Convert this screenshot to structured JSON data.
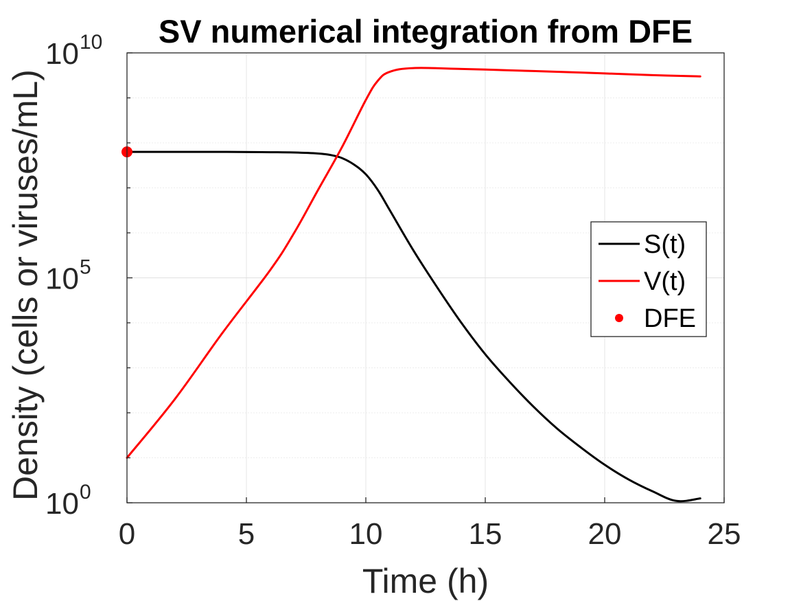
{
  "chart_data": {
    "type": "line",
    "title": "SV numerical integration from DFE",
    "xlabel": "Time (h)",
    "ylabel": "Density (cells or viruses/mL)",
    "xlim": [
      0,
      25
    ],
    "ylim": [
      1,
      10000000000
    ],
    "yscale": "log",
    "grid": true,
    "x_ticks": [
      "0",
      "5",
      "10",
      "15",
      "20",
      "25"
    ],
    "y_ticks": [
      {
        "base": "10",
        "exp": "0"
      },
      {
        "base": "10",
        "exp": "5"
      },
      {
        "base": "10",
        "exp": "10"
      }
    ],
    "legend_position": "right",
    "series": [
      {
        "name": "S(t)",
        "color": "#000000",
        "x": [
          0,
          2,
          4,
          6,
          7,
          8,
          8.5,
          9,
          9.5,
          10,
          10.5,
          11,
          12,
          13,
          14,
          15,
          16,
          17,
          18,
          19,
          20,
          21,
          22,
          23,
          24
        ],
        "y": [
          63000000,
          63000000,
          63000000,
          62000000,
          61000000,
          58000000,
          54000000,
          46000000,
          33000000,
          20000000,
          9000000,
          3200000,
          400000,
          60000,
          10000,
          2000,
          500,
          140,
          45,
          17,
          7,
          3.3,
          1.8,
          1.1,
          1.25
        ]
      },
      {
        "name": "V(t)",
        "color": "#ff0000",
        "x": [
          0,
          2,
          4,
          6,
          7,
          8,
          9,
          10,
          10.5,
          11,
          12,
          14,
          16,
          18,
          20,
          22,
          24
        ],
        "y": [
          10,
          200,
          6000,
          150000,
          1000000,
          9000000,
          80000000,
          900000000,
          2400000000,
          3800000000,
          4600000000,
          4400000000,
          4100000000,
          3800000000,
          3500000000,
          3200000000,
          3000000000
        ]
      },
      {
        "name": "DFE",
        "color": "#ff0000",
        "marker": "dot",
        "x": [
          0
        ],
        "y": [
          63000000
        ]
      }
    ]
  }
}
